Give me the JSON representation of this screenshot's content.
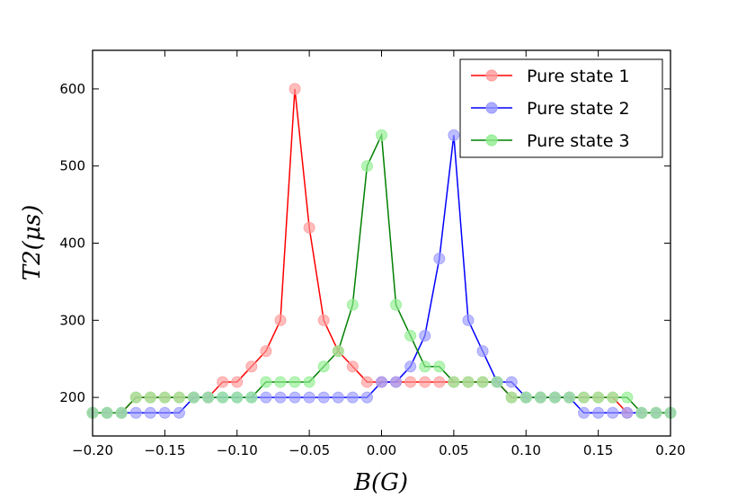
{
  "chart_data": {
    "type": "line",
    "xlabel": "B(G)",
    "ylabel": "T2(μs)",
    "xlim": [
      -0.2,
      0.2
    ],
    "ylim": [
      150,
      650
    ],
    "xticks": [
      "−0.20",
      "−0.15",
      "−0.10",
      "−0.05",
      "0.00",
      "0.05",
      "0.10",
      "0.15",
      "0.20"
    ],
    "yticks": [
      "200",
      "300",
      "400",
      "500",
      "600"
    ],
    "grid": false,
    "legend_position": "top-right",
    "x": [
      -0.2,
      -0.19,
      -0.18,
      -0.17,
      -0.16,
      -0.15,
      -0.14,
      -0.13,
      -0.12,
      -0.11,
      -0.1,
      -0.09,
      -0.08,
      -0.07,
      -0.06,
      -0.05,
      -0.04,
      -0.03,
      -0.02,
      -0.01,
      0.0,
      0.01,
      0.02,
      0.03,
      0.04,
      0.05,
      0.06,
      0.07,
      0.08,
      0.09,
      0.1,
      0.11,
      0.12,
      0.13,
      0.14,
      0.15,
      0.16,
      0.17,
      0.18,
      0.19,
      0.2
    ],
    "series": [
      {
        "name": "Pure state 1",
        "color": "#ff0000",
        "values": [
          180,
          180,
          180,
          200,
          200,
          200,
          200,
          200,
          200,
          220,
          220,
          240,
          260,
          300,
          600,
          420,
          300,
          260,
          240,
          220,
          220,
          220,
          220,
          220,
          220,
          220,
          220,
          220,
          220,
          200,
          200,
          200,
          200,
          200,
          200,
          200,
          200,
          180,
          180,
          180,
          180
        ]
      },
      {
        "name": "Pure state 2",
        "color": "#0000ff",
        "values": [
          180,
          180,
          180,
          180,
          180,
          180,
          180,
          200,
          200,
          200,
          200,
          200,
          200,
          200,
          200,
          200,
          200,
          200,
          200,
          200,
          220,
          220,
          240,
          280,
          380,
          540,
          300,
          260,
          220,
          220,
          200,
          200,
          200,
          200,
          180,
          180,
          180,
          180,
          180,
          180,
          180
        ]
      },
      {
        "name": "Pure state 3",
        "color": "#008000",
        "values": [
          180,
          180,
          180,
          200,
          200,
          200,
          200,
          200,
          200,
          200,
          200,
          200,
          220,
          220,
          220,
          220,
          240,
          260,
          320,
          500,
          540,
          320,
          280,
          240,
          240,
          220,
          220,
          220,
          220,
          200,
          200,
          200,
          200,
          200,
          200,
          200,
          200,
          200,
          180,
          180,
          180
        ]
      }
    ],
    "marker_colors": [
      "#ff9999",
      "#9999ff",
      "#90ee90"
    ]
  }
}
